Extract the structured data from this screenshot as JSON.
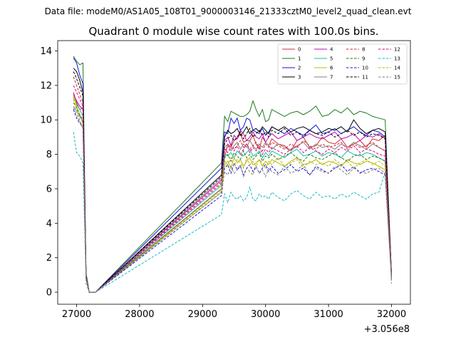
{
  "chart_data": {
    "type": "line",
    "suptitle": "Data file: modeM0/AS1A05_108T01_9000003146_21333cztM0_level2_quad_clean.evt",
    "title": "Quadrant 0 module wise count rates with 100.0s bins.",
    "xlabel": "",
    "ylabel": "",
    "x_offset_label": "+3.056e8",
    "xlim": [
      26700,
      32300
    ],
    "ylim": [
      -0.7,
      14.6
    ],
    "xticks": [
      27000,
      28000,
      29000,
      30000,
      31000,
      32000
    ],
    "yticks": [
      0,
      2,
      4,
      6,
      8,
      10,
      12,
      14
    ],
    "legend_position": "top-right",
    "legend_columns": 4,
    "segments": [
      {
        "x_start": 26950,
        "step": 50,
        "count": 8
      },
      {
        "x_start": 29300,
        "step": 50,
        "count": 16
      },
      {
        "x_start": 30100,
        "step": 100,
        "count": 20
      }
    ],
    "series": [
      {
        "name": "0",
        "color": "#d62728",
        "dash": "solid",
        "values": [
          11.6,
          11.0,
          10.6,
          10.7,
          1.0,
          0.0,
          0.0,
          0.0,
          6.0,
          7.8,
          8.6,
          8.4,
          8.8,
          8.9,
          9.2,
          8.7,
          8.8,
          8.8,
          9.1,
          8.6,
          8.3,
          9.0,
          8.7,
          8.5,
          8.9,
          8.6,
          8.5,
          8.2,
          8.8,
          9.0,
          8.4,
          8.5,
          9.0,
          8.7,
          8.6,
          8.9,
          8.4,
          8.6,
          8.8,
          8.4,
          8.9,
          8.8,
          9.1,
          1.0
        ]
      },
      {
        "name": "1",
        "color": "#1f7a1f",
        "dash": "solid",
        "values": [
          13.7,
          13.4,
          13.2,
          13.3,
          1.1,
          0.0,
          0.0,
          0.0,
          7.5,
          10.2,
          9.9,
          10.5,
          10.4,
          10.3,
          10.2,
          10.2,
          10.3,
          10.5,
          11.1,
          10.6,
          10.2,
          10.6,
          9.9,
          10.0,
          10.6,
          10.4,
          10.2,
          10.4,
          10.5,
          10.3,
          10.5,
          10.8,
          10.2,
          10.3,
          10.6,
          10.4,
          10.7,
          10.3,
          10.5,
          10.4,
          10.2,
          10.1,
          10.0,
          1.0
        ]
      },
      {
        "name": "2",
        "color": "#1111dd",
        "dash": "solid",
        "values": [
          13.6,
          13.3,
          12.6,
          12.1,
          1.0,
          0.0,
          0.0,
          0.0,
          7.2,
          9.3,
          9.2,
          10.1,
          9.8,
          10.1,
          9.4,
          9.6,
          10.1,
          10.0,
          9.4,
          9.3,
          9.2,
          9.5,
          9.1,
          9.3,
          9.6,
          9.4,
          9.2,
          9.5,
          9.3,
          9.1,
          9.4,
          9.7,
          9.2,
          9.3,
          9.5,
          9.2,
          9.4,
          9.6,
          9.3,
          9.1,
          9.4,
          9.3,
          9.0,
          1.0
        ]
      },
      {
        "name": "3",
        "color": "#000000",
        "dash": "solid",
        "values": [
          13.0,
          12.8,
          12.3,
          11.6,
          1.0,
          0.0,
          0.0,
          0.0,
          6.8,
          9.0,
          9.4,
          9.2,
          9.3,
          9.5,
          9.1,
          9.3,
          9.6,
          9.2,
          9.4,
          9.5,
          9.3,
          9.6,
          9.4,
          9.2,
          9.6,
          9.4,
          9.6,
          9.3,
          9.5,
          9.6,
          9.4,
          9.2,
          9.3,
          9.5,
          9.4,
          9.6,
          9.3,
          10.0,
          9.5,
          9.2,
          9.4,
          9.5,
          9.3,
          1.0
        ]
      },
      {
        "name": "4",
        "color": "#c000c0",
        "dash": "solid",
        "values": [
          11.5,
          11.1,
          10.8,
          10.6,
          0.9,
          0.0,
          0.0,
          0.0,
          6.5,
          8.8,
          9.0,
          8.5,
          9.1,
          8.9,
          9.4,
          9.2,
          8.8,
          9.0,
          9.3,
          9.0,
          8.9,
          9.2,
          8.7,
          9.0,
          9.2,
          8.9,
          9.1,
          9.3,
          8.8,
          9.0,
          9.2,
          9.0,
          8.9,
          9.1,
          9.3,
          8.9,
          9.0,
          9.2,
          8.8,
          9.1,
          9.0,
          9.2,
          8.9,
          0.9
        ]
      },
      {
        "name": "5",
        "color": "#17c0a0",
        "dash": "solid",
        "values": [
          11.3,
          10.9,
          10.6,
          10.2,
          0.9,
          0.0,
          0.0,
          0.0,
          6.2,
          8.0,
          7.9,
          8.1,
          7.8,
          8.2,
          8.0,
          7.9,
          8.1,
          8.3,
          7.9,
          8.0,
          8.2,
          7.8,
          8.1,
          7.9,
          8.2,
          8.0,
          7.8,
          8.1,
          8.3,
          7.9,
          8.0,
          8.2,
          7.9,
          8.1,
          8.0,
          7.8,
          8.2,
          8.0,
          7.9,
          8.1,
          8.0,
          7.8,
          7.6,
          0.8
        ]
      },
      {
        "name": "6",
        "color": "#b8b800",
        "dash": "solid",
        "values": [
          11.4,
          10.8,
          10.3,
          9.8,
          0.8,
          0.0,
          0.0,
          0.0,
          5.8,
          7.4,
          7.6,
          7.2,
          7.8,
          7.5,
          7.7,
          7.3,
          7.6,
          7.8,
          7.4,
          7.5,
          7.7,
          7.3,
          7.6,
          7.4,
          7.7,
          7.5,
          7.3,
          7.6,
          7.8,
          7.4,
          7.5,
          7.7,
          7.4,
          7.6,
          7.5,
          7.3,
          7.7,
          7.5,
          7.4,
          7.6,
          7.5,
          7.3,
          7.1,
          0.8
        ]
      },
      {
        "name": "7",
        "color": "#808080",
        "dash": "solid",
        "values": [
          10.8,
          10.5,
          10.2,
          9.9,
          0.8,
          0.0,
          0.0,
          0.0,
          6.6,
          8.4,
          8.6,
          8.2,
          8.5,
          8.7,
          8.3,
          8.6,
          8.4,
          8.8,
          8.5,
          8.3,
          8.6,
          8.4,
          8.7,
          8.5,
          8.3,
          8.6,
          8.4,
          8.2,
          8.5,
          8.7,
          8.3,
          8.6,
          8.4,
          8.5,
          8.3,
          8.6,
          8.4,
          8.7,
          8.5,
          8.3,
          8.6,
          8.4,
          8.2,
          0.9
        ]
      },
      {
        "name": "8",
        "color": "#d62728",
        "dash": "dashed",
        "values": [
          12.5,
          12.0,
          11.5,
          11.0,
          1.0,
          0.0,
          0.0,
          0.0,
          6.4,
          8.2,
          8.4,
          8.6,
          8.3,
          8.5,
          8.8,
          8.4,
          8.6,
          8.3,
          8.5,
          8.7,
          8.4,
          8.2,
          8.6,
          8.4,
          8.7,
          8.5,
          8.3,
          8.6,
          8.4,
          8.8,
          8.5,
          8.3,
          8.6,
          8.4,
          8.5,
          8.7,
          8.3,
          8.6,
          8.4,
          8.5,
          8.7,
          8.4,
          8.2,
          0.9
        ]
      },
      {
        "name": "9",
        "color": "#1f7a1f",
        "dash": "dashed",
        "values": [
          11.0,
          10.7,
          10.3,
          10.0,
          0.9,
          0.0,
          0.0,
          0.0,
          6.0,
          7.8,
          8.0,
          7.6,
          8.1,
          7.9,
          7.7,
          8.2,
          7.8,
          8.0,
          7.7,
          7.9,
          8.1,
          7.6,
          7.9,
          7.8,
          8.0,
          7.7,
          7.9,
          8.1,
          7.8,
          7.6,
          8.0,
          7.8,
          7.7,
          7.9,
          8.1,
          7.8,
          7.6,
          7.9,
          8.0,
          7.7,
          7.9,
          7.8,
          7.6,
          0.8
        ]
      },
      {
        "name": "10",
        "color": "#1111dd",
        "dash": "dashed",
        "values": [
          10.6,
          10.1,
          9.8,
          9.6,
          0.8,
          0.0,
          0.0,
          0.0,
          5.6,
          7.2,
          7.4,
          6.9,
          7.5,
          7.1,
          7.3,
          6.8,
          7.2,
          7.4,
          7.0,
          7.3,
          6.9,
          7.2,
          7.4,
          7.0,
          7.3,
          6.9,
          7.1,
          7.4,
          7.0,
          7.2,
          6.8,
          7.3,
          7.1,
          6.9,
          7.2,
          7.4,
          7.0,
          7.3,
          6.9,
          7.1,
          7.2,
          7.0,
          6.8,
          0.8
        ]
      },
      {
        "name": "11",
        "color": "#000000",
        "dash": "dashed",
        "values": [
          12.8,
          12.4,
          11.9,
          11.4,
          1.0,
          0.0,
          0.0,
          0.0,
          6.7,
          8.6,
          8.9,
          9.1,
          8.8,
          9.0,
          9.3,
          8.9,
          9.2,
          9.5,
          9.0,
          9.2,
          9.4,
          9.1,
          9.3,
          9.0,
          9.4,
          9.2,
          9.5,
          9.1,
          9.3,
          9.0,
          9.4,
          9.2,
          9.1,
          9.3,
          9.0,
          9.2,
          9.4,
          9.1,
          9.3,
          9.0,
          9.2,
          9.1,
          8.9,
          0.9
        ]
      },
      {
        "name": "12",
        "color": "#e0009a",
        "dash": "dashed",
        "values": [
          12.0,
          11.6,
          11.2,
          10.8,
          0.9,
          0.0,
          0.0,
          0.0,
          6.3,
          8.3,
          8.1,
          8.4,
          8.2,
          8.5,
          8.0,
          8.3,
          8.6,
          8.1,
          8.4,
          8.2,
          8.5,
          8.0,
          8.3,
          8.1,
          8.4,
          8.2,
          8.0,
          8.3,
          8.5,
          8.1,
          8.4,
          8.2,
          8.0,
          8.3,
          8.1,
          8.4,
          8.2,
          8.5,
          8.1,
          8.3,
          8.2,
          8.0,
          7.9,
          0.9
        ]
      },
      {
        "name": "13",
        "color": "#17b8c8",
        "dash": "dashed",
        "values": [
          9.3,
          8.1,
          7.9,
          7.5,
          0.5,
          0.0,
          0.0,
          0.0,
          4.5,
          5.7,
          5.2,
          5.8,
          5.5,
          5.4,
          5.6,
          5.3,
          5.5,
          6.1,
          5.4,
          5.3,
          5.7,
          5.5,
          5.6,
          5.4,
          5.8,
          5.5,
          5.3,
          5.7,
          5.9,
          5.6,
          5.4,
          5.8,
          5.5,
          5.6,
          5.4,
          5.7,
          5.5,
          5.8,
          5.6,
          5.4,
          5.7,
          5.8,
          7.0,
          0.7
        ]
      },
      {
        "name": "14",
        "color": "#b8b800",
        "dash": "dashed",
        "values": [
          11.2,
          10.6,
          10.0,
          9.6,
          0.8,
          0.0,
          0.0,
          0.0,
          5.9,
          7.6,
          7.4,
          7.8,
          7.3,
          7.7,
          7.5,
          7.2,
          7.8,
          7.4,
          7.6,
          7.3,
          7.7,
          7.5,
          7.2,
          7.6,
          7.4,
          7.8,
          7.3,
          7.5,
          7.7,
          7.2,
          7.6,
          7.4,
          7.5,
          7.3,
          7.7,
          7.4,
          7.6,
          7.2,
          7.5,
          7.7,
          7.4,
          7.6,
          7.3,
          0.8
        ]
      },
      {
        "name": "15",
        "color": "#808080",
        "dash": "dashed",
        "values": [
          10.7,
          10.3,
          9.9,
          9.5,
          0.8,
          0.0,
          0.0,
          0.0,
          5.8,
          7.0,
          6.8,
          7.3,
          6.9,
          7.1,
          7.4,
          6.7,
          7.2,
          7.0,
          6.8,
          7.3,
          6.9,
          7.1,
          6.7,
          7.2,
          7.0,
          6.8,
          7.3,
          6.9,
          7.1,
          7.4,
          6.8,
          7.2,
          7.0,
          6.9,
          7.3,
          7.1,
          6.8,
          7.2,
          7.0,
          6.9,
          7.1,
          7.2,
          6.9,
          0.5
        ]
      }
    ]
  }
}
